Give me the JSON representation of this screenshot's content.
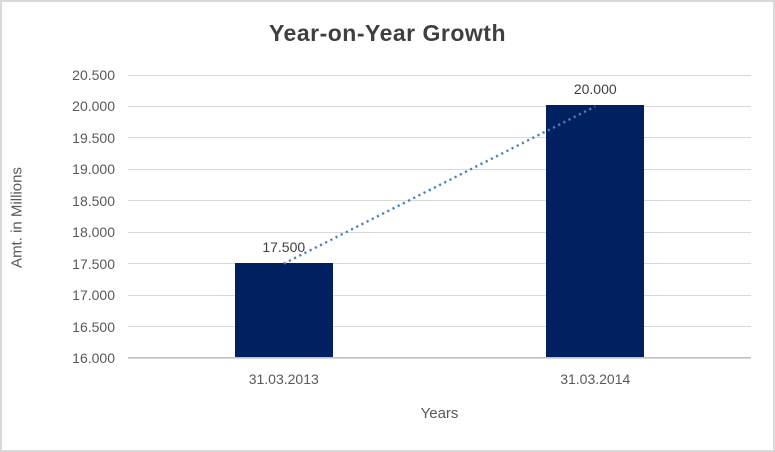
{
  "chart_data": {
    "type": "bar",
    "title": "Year-on-Year Growth",
    "xlabel": "Years",
    "ylabel": "Amt. in Millions",
    "categories": [
      "31.03.2013",
      "31.03.2014"
    ],
    "values": [
      17500,
      20000
    ],
    "data_labels": [
      "17.500",
      "20.000"
    ],
    "ylim": [
      16000,
      20500
    ],
    "ytick_step": 500,
    "ytick_labels": [
      "16.000",
      "16.500",
      "17.000",
      "17.500",
      "18.000",
      "18.500",
      "19.000",
      "19.500",
      "20.000",
      "20.500"
    ],
    "grid": "horizontal",
    "legend": "none",
    "trendline": {
      "style": "dotted",
      "from_value": 17500,
      "to_value": 20000
    },
    "colors": {
      "bar": "#002060",
      "trendline": "#4a80c2",
      "gridline": "#d9d9d9",
      "axis_line": "#bfbfbf",
      "tick_text": "#595959",
      "title_text": "#3f3f3f",
      "border": "#d9d9d9"
    }
  }
}
